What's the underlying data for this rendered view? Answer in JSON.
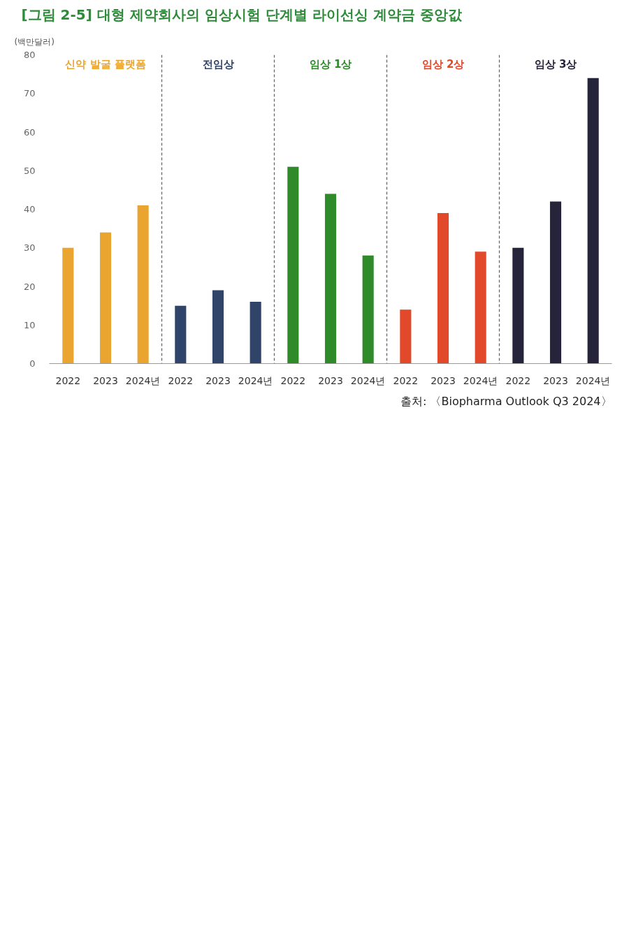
{
  "chart_data": {
    "type": "bar",
    "title": "[그림 2-5] 대형 제약회사의 임상시험 단계별 라이선싱 계약금 중앙값",
    "ylabel": "(백만달러)",
    "categories": [
      "2022",
      "2023",
      "2024년",
      "2022",
      "2023",
      "2024년",
      "2022",
      "2023",
      "2024년",
      "2022",
      "2023",
      "2024년",
      "2022",
      "2023",
      "2024년"
    ],
    "series": [
      {
        "name": "신약 발굴 플랫폼",
        "color": "#eaa531",
        "values": [
          30,
          34,
          41,
          null,
          null,
          null,
          null,
          null,
          null,
          null,
          null,
          null,
          null,
          null,
          null
        ]
      },
      {
        "name": "전임상",
        "color": "#2f4468",
        "values": [
          null,
          null,
          null,
          15,
          19,
          16,
          null,
          null,
          null,
          null,
          null,
          null,
          null,
          null,
          null
        ]
      },
      {
        "name": "임상 1상",
        "color": "#2f8a2a",
        "values": [
          null,
          null,
          null,
          null,
          null,
          null,
          51,
          44,
          28,
          null,
          null,
          null,
          null,
          null,
          null
        ]
      },
      {
        "name": "임상 2상",
        "color": "#e2482a",
        "values": [
          null,
          null,
          null,
          null,
          null,
          null,
          null,
          null,
          null,
          14,
          39,
          29,
          null,
          null,
          null
        ]
      },
      {
        "name": "임상 3상",
        "color": "#25243a",
        "values": [
          null,
          null,
          null,
          null,
          null,
          null,
          null,
          null,
          null,
          null,
          null,
          null,
          30,
          42,
          74
        ]
      }
    ],
    "ylim": [
      0,
      80
    ],
    "yticks": [
      0,
      10,
      20,
      30,
      40,
      50,
      60,
      70,
      80
    ],
    "annotations": [
      "출처: 〈Biopharma Outlook Q3 2024〉"
    ]
  }
}
